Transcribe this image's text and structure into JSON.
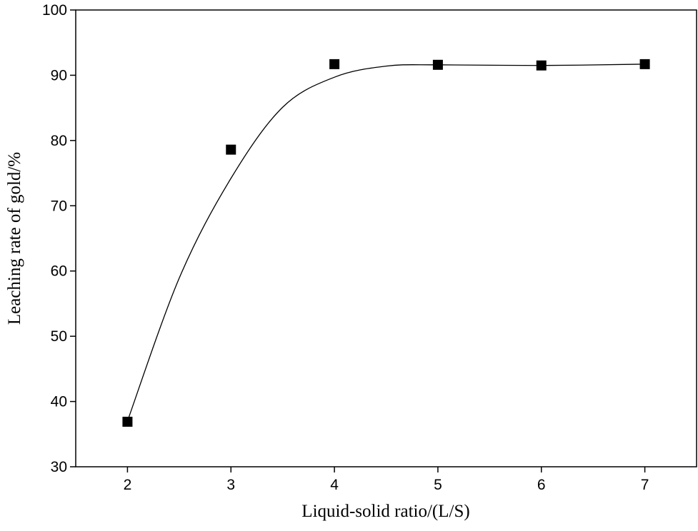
{
  "chart_data": {
    "type": "scatter",
    "x_label": "Liquid-solid ratio/(L/S)",
    "y_label": "Leaching rate of gold/%",
    "x": [
      2,
      3,
      4,
      5,
      6,
      7
    ],
    "series": [
      {
        "color": "#000000",
        "marker": "square",
        "values": [
          36.9,
          78.6,
          91.7,
          91.6,
          91.5,
          91.7
        ]
      }
    ],
    "fit": {
      "color": "#000000",
      "x": [
        2,
        2.5,
        3,
        3.5,
        4,
        4.5,
        5,
        6,
        7
      ],
      "y": [
        37,
        58.9,
        74.2,
        85.1,
        89.7,
        91.4,
        91.6,
        91.5,
        91.7
      ]
    },
    "xlim": [
      1.5,
      7.5
    ],
    "xticks": [
      2,
      3,
      4,
      5,
      6,
      7
    ],
    "ylim": [
      30,
      100
    ],
    "yticks": [
      30,
      40,
      50,
      60,
      70,
      80,
      90,
      100
    ],
    "grid": false
  }
}
